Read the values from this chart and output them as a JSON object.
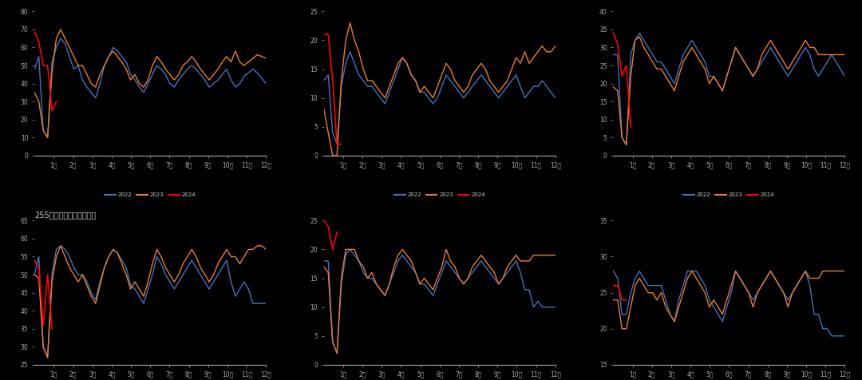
{
  "background_color": "#000000",
  "axes_background": "#000000",
  "colors": {
    "2022": "#4472C4",
    "2023": "#ED7D31",
    "2024": "#FF0000"
  },
  "tick_color": "#AAAAAA",
  "spine_color": "#AAAAAA",
  "text_color": "#CCCCCC",
  "title_text": "255家钢厂废钢日耗：汇总",
  "x_labels": [
    "1月",
    "2月",
    "3月",
    "4月",
    "5月",
    "6月",
    "7月",
    "8月",
    "9月",
    "10月",
    "11月",
    "12月"
  ],
  "charts": [
    {
      "ylim": [
        0,
        80
      ],
      "yticks": [
        0,
        10,
        20,
        30,
        40,
        50,
        60,
        70,
        80
      ],
      "y2022": [
        48,
        55,
        14,
        10,
        52,
        60,
        65,
        62,
        55,
        48,
        50,
        42,
        38,
        35,
        32,
        40,
        50,
        55,
        60,
        58,
        55,
        52,
        45,
        42,
        38,
        35,
        40,
        45,
        50,
        48,
        45,
        40,
        38,
        42,
        45,
        48,
        50,
        48,
        45,
        42,
        38,
        40,
        42,
        45,
        48,
        42,
        38,
        40,
        44,
        46,
        48,
        46,
        43,
        40
      ],
      "y2023": [
        35,
        30,
        14,
        10,
        46,
        65,
        70,
        65,
        60,
        55,
        50,
        50,
        45,
        40,
        38,
        45,
        50,
        55,
        58,
        55,
        52,
        48,
        42,
        45,
        40,
        38,
        42,
        50,
        55,
        52,
        48,
        45,
        42,
        45,
        50,
        52,
        55,
        52,
        48,
        45,
        42,
        45,
        48,
        52,
        55,
        52,
        58,
        52,
        50,
        52,
        54,
        56,
        55,
        54
      ],
      "y2024": [
        69,
        63,
        50,
        50,
        25,
        30,
        null,
        null,
        null,
        null,
        null,
        null,
        null,
        null,
        null,
        null,
        null,
        null,
        null,
        null,
        null,
        null,
        null,
        null,
        null,
        null,
        null,
        null,
        null,
        null,
        null,
        null,
        null,
        null,
        null,
        null,
        null,
        null,
        null,
        null,
        null,
        null,
        null,
        null,
        null,
        null,
        null,
        null,
        null,
        null,
        null,
        null,
        null,
        null
      ]
    },
    {
      "ylim": [
        0,
        25
      ],
      "yticks": [
        0,
        5,
        10,
        15,
        20,
        25
      ],
      "y2022": [
        13,
        14,
        4,
        2,
        12,
        16,
        18,
        16,
        14,
        13,
        12,
        12,
        11,
        10,
        9,
        11,
        13,
        15,
        17,
        16,
        14,
        13,
        11,
        11,
        10,
        9,
        10,
        12,
        14,
        13,
        12,
        11,
        10,
        11,
        12,
        13,
        14,
        13,
        12,
        11,
        10,
        11,
        12,
        13,
        14,
        12,
        10,
        11,
        12,
        12,
        13,
        12,
        11,
        10
      ],
      "y2023": [
        8,
        4,
        0,
        0,
        13,
        20,
        23,
        20,
        18,
        15,
        13,
        13,
        12,
        11,
        10,
        12,
        14,
        16,
        17,
        16,
        14,
        13,
        11,
        12,
        11,
        10,
        12,
        14,
        16,
        15,
        13,
        12,
        11,
        12,
        14,
        15,
        16,
        15,
        13,
        12,
        11,
        12,
        13,
        15,
        17,
        16,
        18,
        16,
        17,
        18,
        19,
        18,
        18,
        19
      ],
      "y2024": [
        21,
        21,
        13,
        2,
        2,
        null,
        null,
        null,
        null,
        null,
        null,
        null,
        null,
        null,
        null,
        null,
        null,
        null,
        null,
        null,
        null,
        null,
        null,
        null,
        null,
        null,
        null,
        null,
        null,
        null,
        null,
        null,
        null,
        null,
        null,
        null,
        null,
        null,
        null,
        null,
        null,
        null,
        null,
        null,
        null,
        null,
        null,
        null,
        null,
        null,
        null,
        null,
        null,
        null
      ]
    },
    {
      "ylim": [
        0,
        40
      ],
      "yticks": [
        0,
        5,
        10,
        15,
        20,
        25,
        30,
        35,
        40
      ],
      "y2022": [
        28,
        28,
        5,
        3,
        28,
        32,
        34,
        32,
        30,
        28,
        26,
        26,
        24,
        22,
        20,
        24,
        28,
        30,
        32,
        30,
        28,
        26,
        22,
        22,
        20,
        18,
        22,
        26,
        30,
        28,
        26,
        24,
        22,
        24,
        26,
        28,
        30,
        28,
        26,
        24,
        22,
        24,
        26,
        28,
        30,
        28,
        24,
        22,
        24,
        26,
        28,
        26,
        24,
        22
      ],
      "y2023": [
        19,
        18,
        5,
        3,
        22,
        32,
        33,
        30,
        28,
        26,
        24,
        24,
        22,
        20,
        18,
        22,
        26,
        28,
        30,
        28,
        26,
        24,
        20,
        22,
        20,
        18,
        22,
        26,
        30,
        28,
        26,
        24,
        22,
        24,
        28,
        30,
        32,
        30,
        28,
        26,
        24,
        26,
        28,
        30,
        32,
        30,
        30,
        28,
        28,
        28,
        28,
        28,
        28,
        28
      ],
      "y2024": [
        34,
        31,
        22,
        25,
        8,
        null,
        null,
        null,
        null,
        null,
        null,
        null,
        null,
        null,
        null,
        null,
        null,
        null,
        null,
        null,
        null,
        null,
        null,
        null,
        null,
        null,
        null,
        null,
        null,
        null,
        null,
        null,
        null,
        null,
        null,
        null,
        null,
        null,
        null,
        null,
        null,
        null,
        null,
        null,
        null,
        null,
        null,
        null,
        null,
        null,
        null,
        null,
        null,
        null
      ]
    },
    {
      "title": "255家钢厂废钢日耗：汇总",
      "ylim": [
        25,
        65
      ],
      "yticks": [
        25,
        30,
        35,
        40,
        45,
        50,
        55,
        60,
        65
      ],
      "y2022": [
        50,
        55,
        30,
        27,
        50,
        57,
        58,
        57,
        55,
        52,
        50,
        50,
        48,
        45,
        43,
        48,
        52,
        55,
        57,
        56,
        54,
        52,
        47,
        46,
        44,
        42,
        46,
        50,
        55,
        53,
        50,
        48,
        46,
        48,
        50,
        52,
        54,
        52,
        50,
        48,
        46,
        48,
        50,
        52,
        54,
        48,
        44,
        46,
        48,
        46,
        42,
        42,
        42,
        42
      ],
      "y2023": [
        50,
        49,
        30,
        27,
        48,
        55,
        58,
        55,
        52,
        50,
        48,
        50,
        47,
        44,
        42,
        47,
        52,
        55,
        57,
        56,
        53,
        50,
        46,
        48,
        46,
        44,
        48,
        53,
        57,
        55,
        52,
        50,
        48,
        50,
        53,
        55,
        57,
        55,
        52,
        50,
        48,
        50,
        53,
        55,
        57,
        55,
        55,
        53,
        55,
        57,
        57,
        58,
        58,
        57
      ],
      "y2024": [
        54,
        52,
        36,
        50,
        35,
        null,
        null,
        null,
        null,
        null,
        null,
        null,
        null,
        null,
        null,
        null,
        null,
        null,
        null,
        null,
        null,
        null,
        null,
        null,
        null,
        null,
        null,
        null,
        null,
        null,
        null,
        null,
        null,
        null,
        null,
        null,
        null,
        null,
        null,
        null,
        null,
        null,
        null,
        null,
        null,
        null,
        null,
        null,
        null,
        null,
        null,
        null,
        null,
        null
      ]
    },
    {
      "ylim": [
        0,
        25
      ],
      "yticks": [
        0,
        5,
        10,
        15,
        20,
        25
      ],
      "y2022": [
        18,
        18,
        4,
        2,
        14,
        19,
        20,
        19,
        18,
        16,
        15,
        15,
        14,
        13,
        12,
        14,
        16,
        18,
        19,
        18,
        17,
        16,
        14,
        14,
        13,
        12,
        14,
        16,
        18,
        17,
        16,
        15,
        14,
        15,
        16,
        17,
        18,
        17,
        16,
        15,
        14,
        15,
        16,
        17,
        18,
        16,
        13,
        13,
        10,
        11,
        10,
        10,
        10,
        10
      ],
      "y2023": [
        17,
        16,
        4,
        2,
        15,
        20,
        20,
        20,
        18,
        17,
        15,
        16,
        14,
        13,
        12,
        14,
        17,
        19,
        20,
        19,
        18,
        16,
        14,
        15,
        14,
        13,
        15,
        17,
        20,
        18,
        17,
        15,
        14,
        15,
        17,
        18,
        19,
        18,
        17,
        16,
        14,
        15,
        17,
        18,
        19,
        18,
        18,
        18,
        19,
        19,
        19,
        19,
        19,
        19
      ],
      "y2024": [
        25,
        24,
        20,
        23,
        null,
        null,
        null,
        null,
        null,
        null,
        null,
        null,
        null,
        null,
        null,
        null,
        null,
        null,
        null,
        null,
        null,
        null,
        null,
        null,
        null,
        null,
        null,
        null,
        null,
        null,
        null,
        null,
        null,
        null,
        null,
        null,
        null,
        null,
        null,
        null,
        null,
        null,
        null,
        null,
        null,
        null,
        null,
        null,
        null,
        null,
        null,
        null,
        null,
        null
      ]
    },
    {
      "ylim": [
        15,
        35
      ],
      "yticks": [
        15,
        20,
        25,
        30,
        35
      ],
      "y2022": [
        28,
        27,
        22,
        22,
        25,
        27,
        28,
        27,
        26,
        26,
        26,
        26,
        24,
        22,
        21,
        24,
        26,
        28,
        28,
        28,
        27,
        26,
        24,
        23,
        22,
        21,
        23,
        25,
        28,
        27,
        26,
        25,
        24,
        25,
        26,
        27,
        28,
        27,
        26,
        25,
        24,
        25,
        26,
        27,
        28,
        26,
        22,
        22,
        20,
        20,
        19,
        19,
        19,
        19
      ],
      "y2023": [
        24,
        24,
        20,
        20,
        23,
        26,
        27,
        26,
        25,
        25,
        24,
        25,
        23,
        22,
        21,
        23,
        25,
        27,
        28,
        27,
        26,
        25,
        23,
        24,
        23,
        22,
        24,
        26,
        28,
        27,
        26,
        25,
        23,
        25,
        26,
        27,
        28,
        27,
        26,
        25,
        23,
        25,
        26,
        27,
        28,
        27,
        27,
        27,
        28,
        28,
        28,
        28,
        28,
        28
      ],
      "y2024": [
        26,
        26,
        24,
        24,
        null,
        null,
        null,
        null,
        null,
        null,
        null,
        null,
        null,
        null,
        null,
        null,
        null,
        null,
        null,
        null,
        null,
        null,
        null,
        null,
        null,
        null,
        null,
        null,
        null,
        null,
        null,
        null,
        null,
        null,
        null,
        null,
        null,
        null,
        null,
        null,
        null,
        null,
        null,
        null,
        null,
        null,
        null,
        null,
        null,
        null,
        null,
        null,
        null,
        null
      ]
    }
  ]
}
